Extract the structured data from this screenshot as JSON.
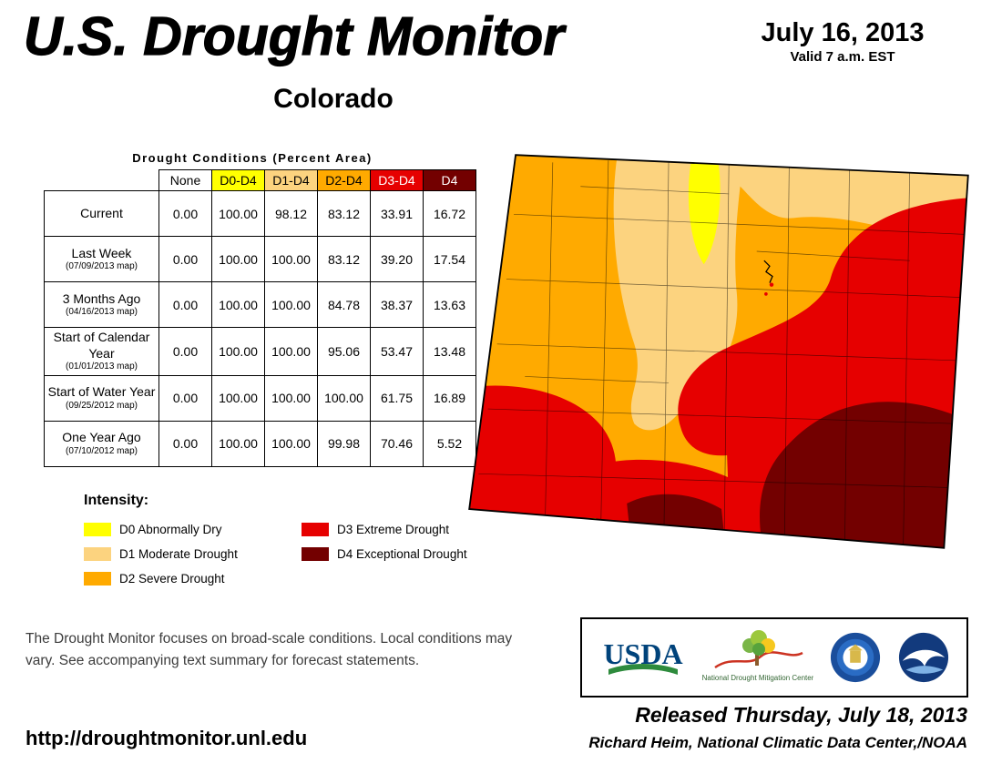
{
  "header": {
    "title": "U.S. Drought Monitor",
    "region": "Colorado",
    "date": "July 16, 2013",
    "valid_line": "Valid 7 a.m. EST"
  },
  "table": {
    "title": "Drought Conditions (Percent Area)",
    "columns": [
      "None",
      "D0-D4",
      "D1-D4",
      "D2-D4",
      "D3-D4",
      "D4"
    ],
    "column_colors": [
      "#FFFFFF",
      "#FFFF00",
      "#FCD37F",
      "#FFAA00",
      "#E60000",
      "#730000"
    ],
    "column_text_colors": [
      "#000000",
      "#000000",
      "#000000",
      "#000000",
      "#FFFFFF",
      "#FFFFFF"
    ],
    "rows": [
      {
        "label": "Current",
        "sublabel": "",
        "values": [
          "0.00",
          "100.00",
          "98.12",
          "83.12",
          "33.91",
          "16.72"
        ]
      },
      {
        "label": "Last Week",
        "sublabel": "(07/09/2013 map)",
        "values": [
          "0.00",
          "100.00",
          "100.00",
          "83.12",
          "39.20",
          "17.54"
        ]
      },
      {
        "label": "3 Months Ago",
        "sublabel": "(04/16/2013 map)",
        "values": [
          "0.00",
          "100.00",
          "100.00",
          "84.78",
          "38.37",
          "13.63"
        ]
      },
      {
        "label": "Start of Calendar Year",
        "sublabel": "(01/01/2013 map)",
        "values": [
          "0.00",
          "100.00",
          "100.00",
          "95.06",
          "53.47",
          "13.48"
        ]
      },
      {
        "label": "Start of Water Year",
        "sublabel": "(09/25/2012 map)",
        "values": [
          "0.00",
          "100.00",
          "100.00",
          "100.00",
          "61.75",
          "16.89"
        ]
      },
      {
        "label": "One Year Ago",
        "sublabel": "(07/10/2012 map)",
        "values": [
          "0.00",
          "100.00",
          "100.00",
          "99.98",
          "70.46",
          "5.52"
        ]
      }
    ]
  },
  "chart_data": {
    "type": "table",
    "title": "Drought Conditions (Percent Area) - Colorado - July 16, 2013",
    "columns": [
      "None",
      "D0-D4",
      "D1-D4",
      "D2-D4",
      "D3-D4",
      "D4"
    ],
    "rows": [
      {
        "period": "Current",
        "values": [
          0.0,
          100.0,
          98.12,
          83.12,
          33.91,
          16.72
        ]
      },
      {
        "period": "Last Week (07/09/2013 map)",
        "values": [
          0.0,
          100.0,
          100.0,
          83.12,
          39.2,
          17.54
        ]
      },
      {
        "period": "3 Months Ago (04/16/2013 map)",
        "values": [
          0.0,
          100.0,
          100.0,
          84.78,
          38.37,
          13.63
        ]
      },
      {
        "period": "Start of Calendar Year (01/01/2013 map)",
        "values": [
          0.0,
          100.0,
          100.0,
          95.06,
          53.47,
          13.48
        ]
      },
      {
        "period": "Start of Water Year (09/25/2012 map)",
        "values": [
          0.0,
          100.0,
          100.0,
          100.0,
          61.75,
          16.89
        ]
      },
      {
        "period": "One Year Ago (07/10/2012 map)",
        "values": [
          0.0,
          100.0,
          100.0,
          99.98,
          70.46,
          5.52
        ]
      }
    ]
  },
  "legend": {
    "title": "Intensity:",
    "items": [
      {
        "code": "D0",
        "label": "Abnormally Dry",
        "color": "#FFFF00"
      },
      {
        "code": "D1",
        "label": "Moderate Drought",
        "color": "#FCD37F"
      },
      {
        "code": "D2",
        "label": "Severe Drought",
        "color": "#FFAA00"
      },
      {
        "code": "D3",
        "label": "Extreme Drought",
        "color": "#E60000"
      },
      {
        "code": "D4",
        "label": "Exceptional Drought",
        "color": "#730000"
      }
    ]
  },
  "map": {
    "colors": {
      "d0": "#FFFF00",
      "d1": "#FCD37F",
      "d2": "#FFAA00",
      "d3": "#E60000",
      "d4": "#730000",
      "border": "#000000"
    }
  },
  "disclaimer": "The Drought Monitor focuses on broad-scale conditions. Local conditions may vary. See accompanying text summary for forecast statements.",
  "logos": {
    "usda": "USDA",
    "ndmc": "National Drought Mitigation Center",
    "noaa": "NOAA"
  },
  "footer": {
    "released": "Released Thursday, July 18, 2013",
    "author": "Richard Heim, National Climatic Data Center,/NOAA",
    "url": "http://droughtmonitor.unl.edu"
  }
}
